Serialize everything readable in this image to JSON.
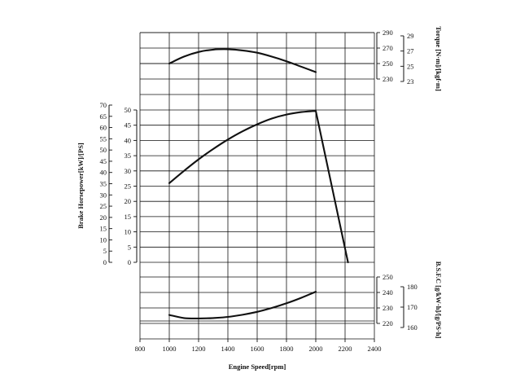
{
  "chart_data": {
    "type": "line",
    "title": "",
    "xlabel": "Engine Speed[rpm]",
    "x_ticks": [
      800,
      1000,
      1200,
      1400,
      1600,
      1800,
      2000,
      2200,
      2400
    ],
    "xlim": [
      800,
      2400
    ],
    "grid": true,
    "panels": [
      {
        "name": "torque",
        "ylabel": "Torque [N·m]/[kgf·m]",
        "ylim": [
          230,
          290
        ],
        "primary_ticks": [
          230,
          250,
          270,
          290
        ],
        "secondary_ticks": [
          23,
          25,
          27,
          29
        ],
        "series": [
          {
            "x": [
              1000,
              1100,
              1200,
              1300,
              1400,
              1500,
              1600,
              1700,
              1800,
              1900,
              2000
            ],
            "y": [
              250,
              259,
              265,
              268,
              268.5,
              267,
              264,
              259,
              253,
              246,
              239
            ]
          }
        ]
      },
      {
        "name": "power",
        "ylabel": "Brake Horsepower[kW]/[PS]",
        "ylim": [
          0,
          50
        ],
        "primary_ticks": [
          0,
          5,
          10,
          15,
          20,
          25,
          30,
          35,
          40,
          45,
          50
        ],
        "secondary_ticks": [
          0,
          5,
          10,
          15,
          20,
          25,
          30,
          35,
          40,
          45,
          50,
          55,
          60,
          65,
          70
        ],
        "series": [
          {
            "x": [
              1000,
              1100,
              1200,
              1300,
              1400,
              1500,
              1600,
              1700,
              1800,
              1900,
              2000,
              2220
            ],
            "y": [
              26,
              30,
              33.8,
              37.2,
              40.3,
              43,
              45.3,
              47.2,
              48.5,
              49.3,
              49.7,
              0
            ]
          }
        ]
      },
      {
        "name": "bsfc",
        "ylabel": "B.S.F.C [g/kW·h]/[g/PS·h]",
        "ylim": [
          210,
          250
        ],
        "primary_ticks": [
          220,
          230,
          240,
          250
        ],
        "secondary_ticks": [
          160,
          170,
          180
        ],
        "series": [
          {
            "x": [
              1000,
              1100,
              1200,
              1300,
              1400,
              1500,
              1600,
              1700,
              1800,
              1900,
              2000
            ],
            "y": [
              225.5,
              223.5,
              223.2,
              223.5,
              224.2,
              225.6,
              227.5,
              230,
              233,
              236.5,
              240.5
            ]
          }
        ]
      }
    ]
  }
}
